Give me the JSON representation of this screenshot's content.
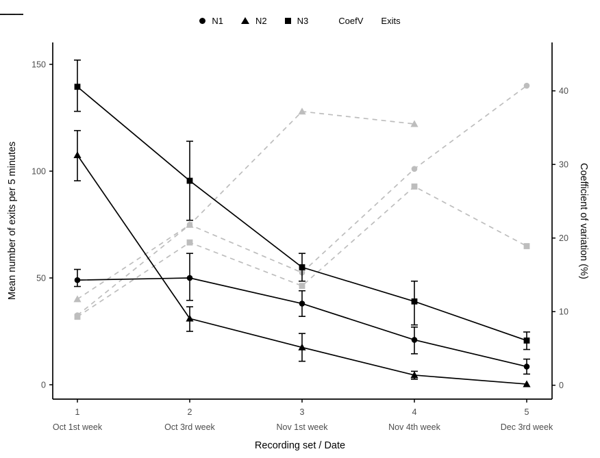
{
  "chart_data": {
    "type": "line",
    "title": "",
    "xlabel": "Recording set / Date",
    "ylabel_left": "Mean number of exits per 5 minutes",
    "ylabel_right": "Coefficient of variation (%)",
    "x": [
      1,
      2,
      3,
      4,
      5
    ],
    "x_tick_labels": [
      "1",
      "2",
      "3",
      "4",
      "5"
    ],
    "x_sub_labels": [
      "Oct 1st week",
      "Oct 3rd week",
      "Nov 1st week",
      "Nov 4th week",
      "Dec 3rd week"
    ],
    "ylim_left": [
      0,
      150
    ],
    "yticks_left": [
      0,
      50,
      100,
      150
    ],
    "ylim_right": [
      0,
      40
    ],
    "yticks_right": [
      0,
      10,
      20,
      30,
      40
    ],
    "grid": "off",
    "legend_position": "top-center",
    "series_exits": [
      {
        "name": "N3",
        "marker": "square",
        "values": [
          139.5,
          95.5,
          55,
          39,
          20.7
        ],
        "ci_low": [
          128,
          77,
          48.5,
          28,
          16.5
        ],
        "ci_high": [
          152,
          114,
          61.5,
          48.5,
          24.7
        ]
      },
      {
        "name": "N2",
        "marker": "triangle",
        "values": [
          107.5,
          31,
          17.5,
          4.5,
          0.3
        ],
        "ci_low": [
          95.5,
          25,
          11,
          2.6,
          null
        ],
        "ci_high": [
          119,
          36.5,
          24,
          6.3,
          null
        ]
      },
      {
        "name": "N1",
        "marker": "circle",
        "values": [
          49,
          50,
          38,
          21,
          8.5
        ],
        "ci_low": [
          46,
          39.5,
          32,
          14.5,
          5
        ],
        "ci_high": [
          54,
          61.5,
          44,
          27,
          12
        ]
      }
    ],
    "series_coefv": [
      {
        "name": "N3",
        "marker": "square",
        "values": [
          9.3,
          19.4,
          13.5,
          27.0,
          18.9
        ]
      },
      {
        "name": "N2",
        "marker": "triangle",
        "values": [
          11.7,
          21.8,
          37.2,
          35.5,
          null
        ]
      },
      {
        "name": "N1",
        "marker": "circle",
        "values": [
          9.5,
          21.8,
          15.3,
          29.4,
          40.7
        ]
      }
    ],
    "legend": {
      "markers": [
        {
          "label": "N1",
          "marker": "circle"
        },
        {
          "label": "N2",
          "marker": "triangle"
        },
        {
          "label": "N3",
          "marker": "square"
        }
      ],
      "lines": [
        {
          "label": "CoefV",
          "style": "dashed"
        },
        {
          "label": "Exits",
          "style": "solid"
        }
      ]
    },
    "colors": {
      "exits": "#000000",
      "coefv": "#bdbdbd",
      "axis_line": "#000000",
      "tick_text": "#4d4d4d"
    }
  }
}
